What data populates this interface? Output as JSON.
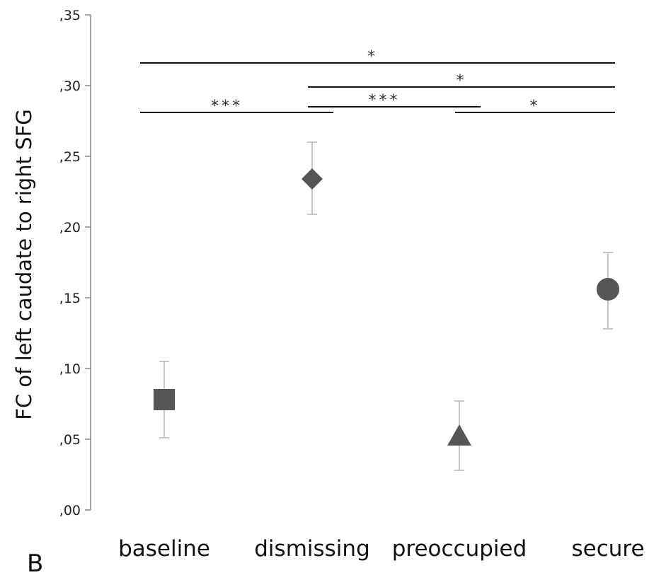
{
  "chart_data": {
    "type": "scatter",
    "title": "",
    "panel_label": "B",
    "xlabel": "",
    "ylabel": "FC of left caudate to right SFG",
    "ylim": [
      0,
      0.35
    ],
    "yticks": [
      {
        "value": 0.0,
        "label": ",00"
      },
      {
        "value": 0.05,
        "label": ",05"
      },
      {
        "value": 0.1,
        "label": ",10"
      },
      {
        "value": 0.15,
        "label": ",15"
      },
      {
        "value": 0.2,
        "label": ",20"
      },
      {
        "value": 0.25,
        "label": ",25"
      },
      {
        "value": 0.3,
        "label": ",30"
      },
      {
        "value": 0.35,
        "label": ",35"
      }
    ],
    "categories": [
      "baseline",
      "dismissing",
      "preoccupied",
      "secure"
    ],
    "points": [
      {
        "category": "baseline",
        "value": 0.078,
        "err_low": 0.051,
        "err_high": 0.105,
        "marker": "square"
      },
      {
        "category": "dismissing",
        "value": 0.234,
        "err_low": 0.209,
        "err_high": 0.26,
        "marker": "diamond"
      },
      {
        "category": "preoccupied",
        "value": 0.052,
        "err_low": 0.028,
        "err_high": 0.077,
        "marker": "triangle"
      },
      {
        "category": "secure",
        "value": 0.156,
        "err_low": 0.128,
        "err_high": 0.182,
        "marker": "circle"
      }
    ],
    "significance": [
      {
        "from": "baseline",
        "to": "secure",
        "y": 0.316,
        "label": "*"
      },
      {
        "from": "dismissing",
        "to": "secure",
        "y": 0.299,
        "label": "*"
      },
      {
        "from": "dismissing",
        "to": "preoccupied",
        "y": 0.285,
        "label": "***"
      },
      {
        "from": "baseline",
        "to": "dismissing",
        "y": 0.281,
        "label": "***"
      },
      {
        "from": "preoccupied",
        "to": "secure",
        "y": 0.281,
        "label": "*"
      }
    ],
    "grid": false,
    "legend": "none",
    "colors": {
      "marker": "#555555",
      "errorbar": "#b5b5b5",
      "axis": "#888888",
      "bracket": "#111111"
    }
  }
}
